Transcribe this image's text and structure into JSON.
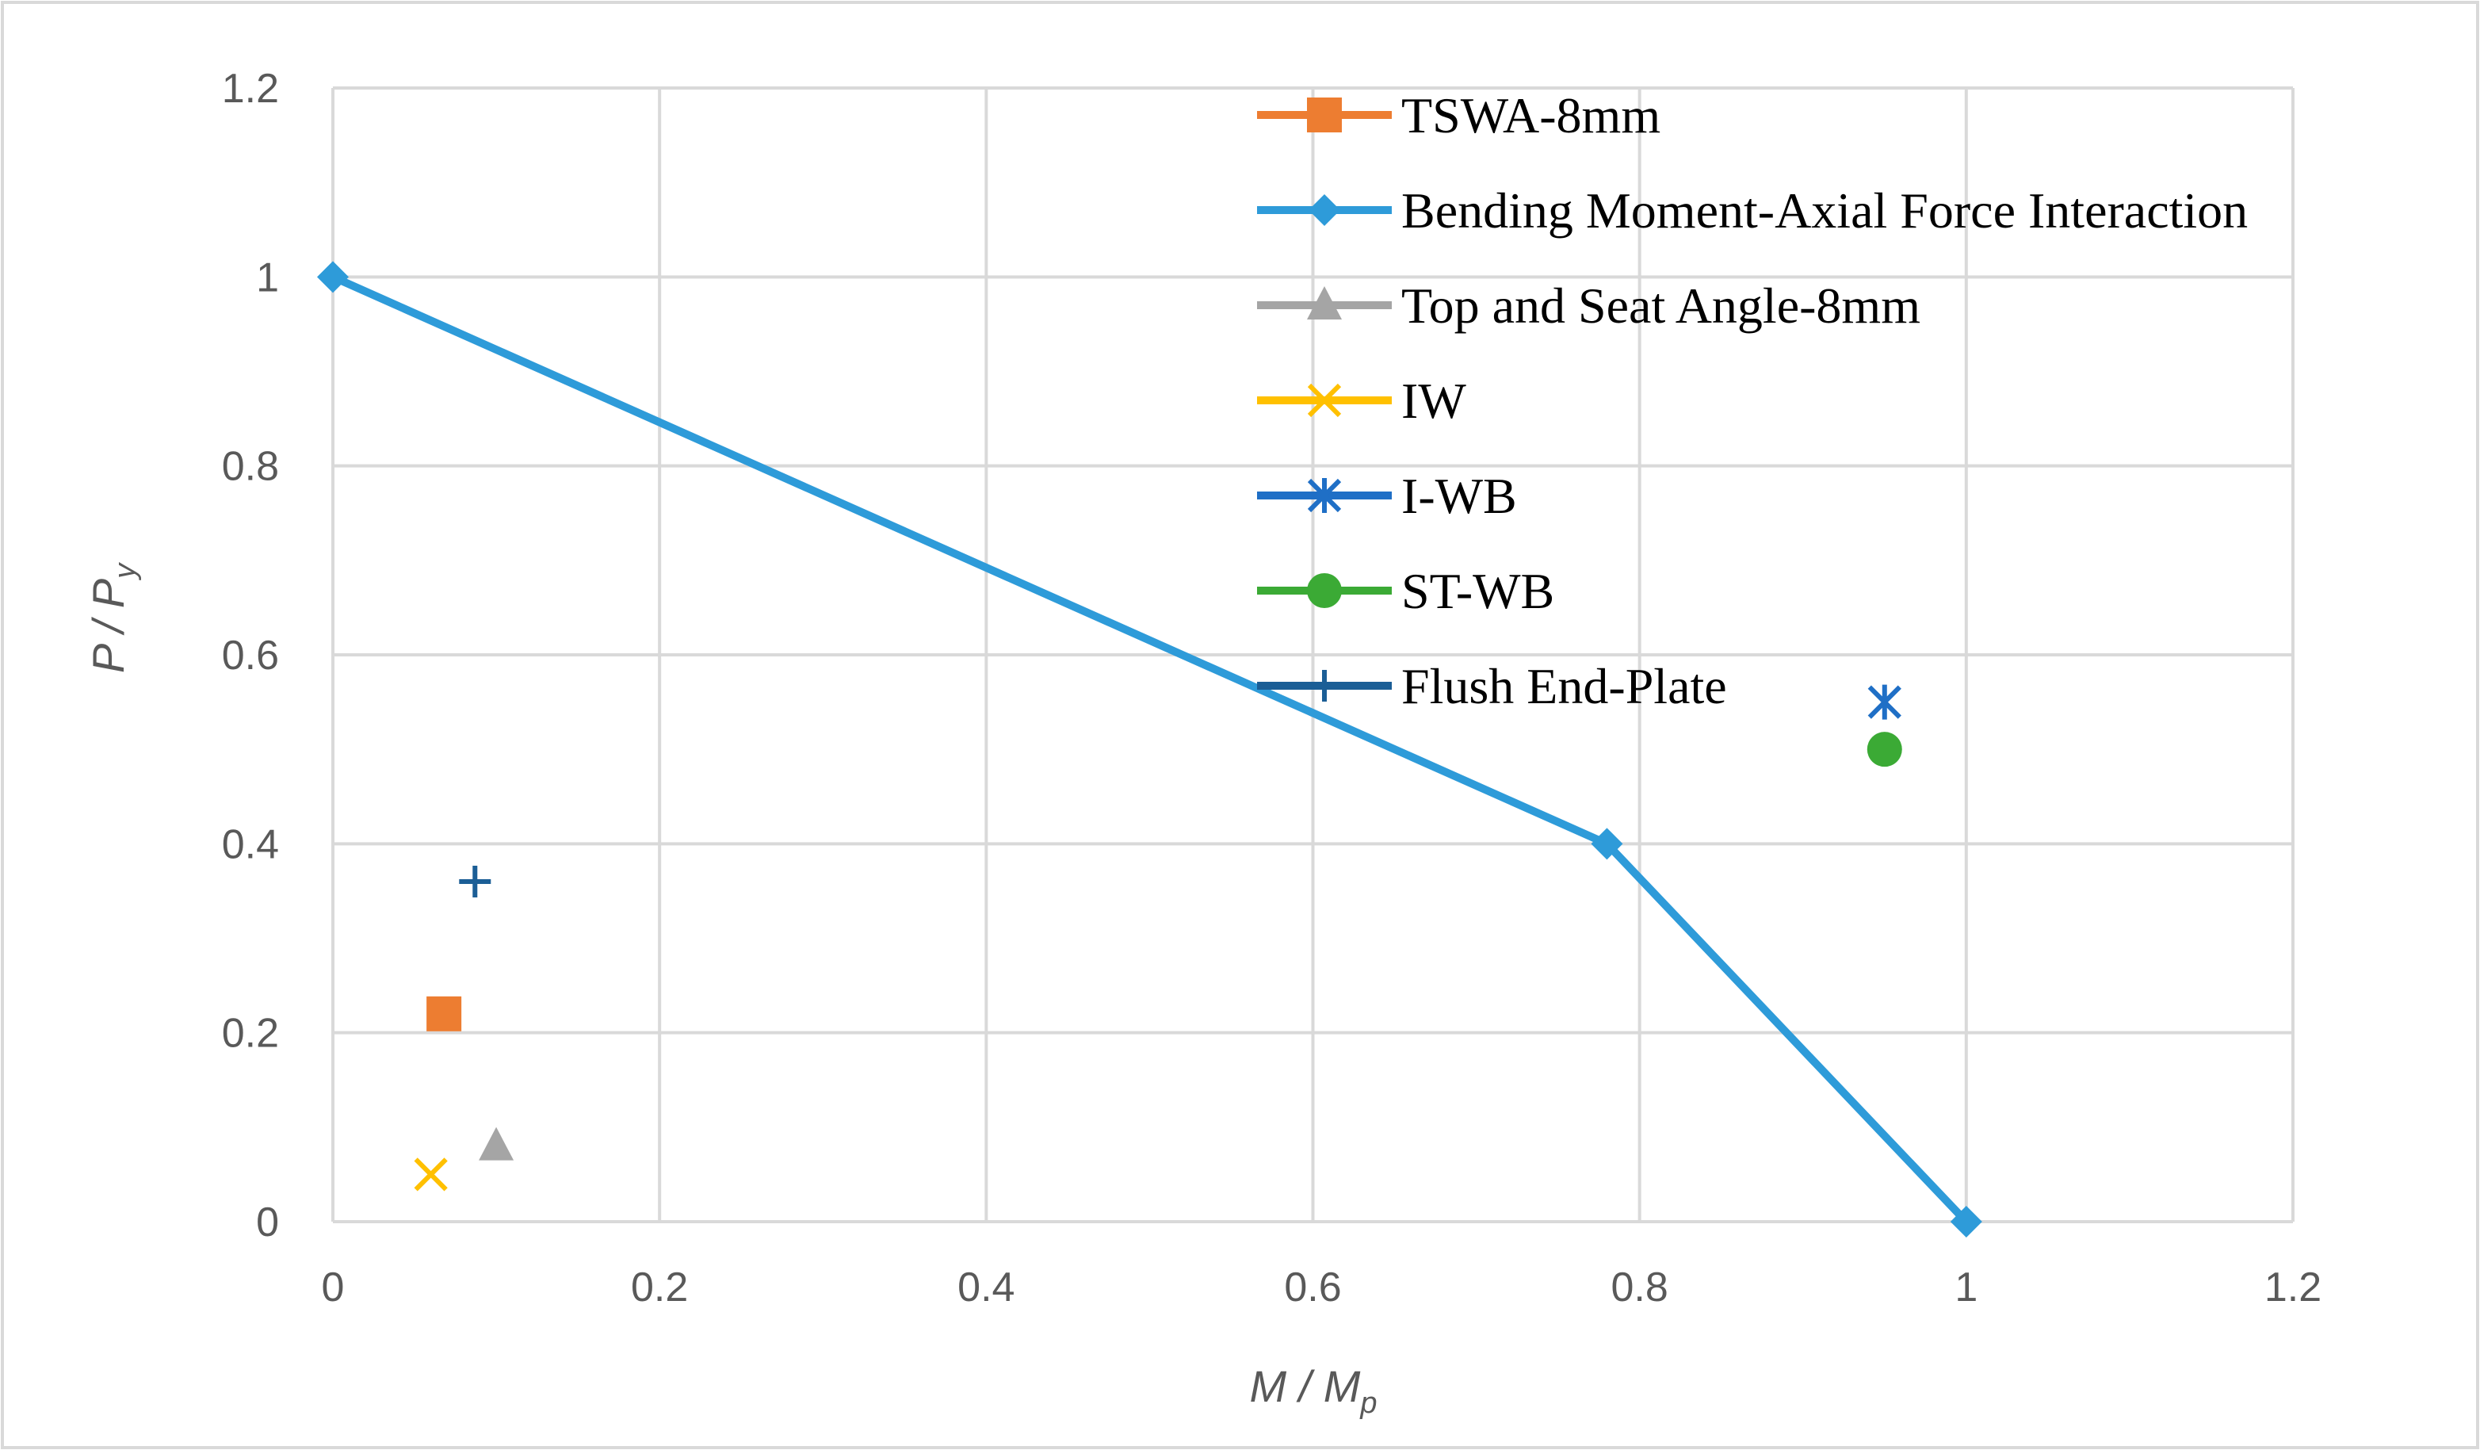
{
  "chart_data": {
    "type": "scatter",
    "title": "",
    "xlabel": {
      "main": "M / M",
      "sub": "p"
    },
    "ylabel": {
      "main": "P / P",
      "sub": "y"
    },
    "xlim": [
      0,
      1.2
    ],
    "ylim": [
      0,
      1.2
    ],
    "xticks": [
      0,
      0.2,
      0.4,
      0.6,
      0.8,
      1,
      1.2
    ],
    "yticks": [
      0,
      0.2,
      0.4,
      0.6,
      0.8,
      1,
      1.2
    ],
    "xtick_labels": [
      "0",
      "0.2",
      "0.4",
      "0.6",
      "0.8",
      "1",
      "1.2"
    ],
    "ytick_labels": [
      "0",
      "0.2",
      "0.4",
      "0.6",
      "0.8",
      "1",
      "1.2"
    ],
    "grid": true,
    "legend_position": "top-right (inside plot)",
    "series": [
      {
        "name": "TSWA-8mm",
        "marker": "square",
        "color": "#ED7D31",
        "line": false,
        "points": [
          [
            0.068,
            0.22
          ]
        ]
      },
      {
        "name": "Bending Moment-Axial Force Interaction",
        "marker": "diamond",
        "color": "#2E9BD9",
        "line": true,
        "points": [
          [
            0,
            1
          ],
          [
            0.78,
            0.4
          ],
          [
            1,
            0
          ]
        ]
      },
      {
        "name": "Top and Seat Angle-8mm",
        "marker": "triangle",
        "color": "#A5A5A5",
        "line": false,
        "points": [
          [
            0.1,
            0.08
          ]
        ]
      },
      {
        "name": "IW",
        "marker": "x",
        "color": "#FFC000",
        "line": false,
        "points": [
          [
            0.06,
            0.05
          ]
        ]
      },
      {
        "name": "I-WB",
        "marker": "asterisk",
        "color": "#1F6FC6",
        "line": false,
        "points": [
          [
            0.95,
            0.55
          ]
        ]
      },
      {
        "name": "ST-WB",
        "marker": "circle",
        "color": "#3BAA35",
        "line": false,
        "points": [
          [
            0.95,
            0.5
          ]
        ]
      },
      {
        "name": "Flush End-Plate",
        "marker": "plus",
        "color": "#1B5E96",
        "line": false,
        "points": [
          [
            0.087,
            0.36
          ]
        ]
      }
    ]
  }
}
